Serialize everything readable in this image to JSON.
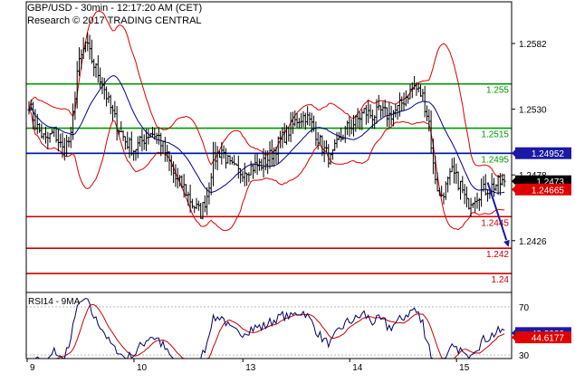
{
  "header": {
    "title": "GBP/USD - 30min - 12:17:20 AM (CET)",
    "source": "Research © 2017 TRADING CENTRAL"
  },
  "chart_data": {
    "type": "candlestick",
    "price_axis": {
      "ylim": [
        1.2385,
        1.2615
      ],
      "ticks": [
        "1.2582",
        "1.2530",
        "1.2478",
        "1.2426"
      ],
      "tick_values": [
        1.2582,
        1.253,
        1.2478,
        1.2426
      ]
    },
    "x_axis": {
      "labels": [
        "9",
        "10",
        "13",
        "14",
        "15"
      ],
      "positions": [
        0,
        51,
        103,
        154,
        205
      ],
      "bars_total": 230
    },
    "levels": [
      {
        "label": "1.255",
        "value": 1.255,
        "color": "#009900",
        "kind": "resistance"
      },
      {
        "label": "1.2515",
        "value": 1.2515,
        "color": "#009900",
        "kind": "resistance"
      },
      {
        "label": "1.2495",
        "value": 1.2495,
        "color": "#009900",
        "kind": "resistance"
      },
      {
        "label": "1.2445",
        "value": 1.2445,
        "color": "#cc0000",
        "kind": "support"
      },
      {
        "label": "1.242",
        "value": 1.242,
        "color": "#cc0000",
        "kind": "support"
      },
      {
        "label": "1.24",
        "value": 1.24,
        "color": "#cc0000",
        "kind": "support"
      }
    ],
    "pivot_line": {
      "value": 1.24952,
      "color": "#0000cc"
    },
    "price_tags": [
      {
        "label": "1.24952",
        "value": 1.24952,
        "bg": "#1a1aa6",
        "fg": "#ffffff"
      },
      {
        "label": "1.2473",
        "value": 1.2473,
        "bg": "#000000",
        "fg": "#ffffff"
      },
      {
        "label": "1.24665",
        "value": 1.24665,
        "bg": "#e00000",
        "fg": "#ffffff"
      }
    ],
    "price_anchors": [
      [
        0,
        1.2535
      ],
      [
        3,
        1.2518
      ],
      [
        8,
        1.2505
      ],
      [
        12,
        1.2512
      ],
      [
        16,
        1.2498
      ],
      [
        20,
        1.2507
      ],
      [
        23,
        1.256
      ],
      [
        27,
        1.2582
      ],
      [
        31,
        1.2565
      ],
      [
        35,
        1.2552
      ],
      [
        38,
        1.2535
      ],
      [
        42,
        1.2518
      ],
      [
        46,
        1.2505
      ],
      [
        50,
        1.2498
      ],
      [
        54,
        1.2505
      ],
      [
        58,
        1.2512
      ],
      [
        62,
        1.2508
      ],
      [
        66,
        1.2492
      ],
      [
        70,
        1.2475
      ],
      [
        74,
        1.2468
      ],
      [
        78,
        1.2455
      ],
      [
        82,
        1.2448
      ],
      [
        85,
        1.2462
      ],
      [
        88,
        1.249
      ],
      [
        92,
        1.2498
      ],
      [
        96,
        1.2485
      ],
      [
        100,
        1.248
      ],
      [
        104,
        1.2483
      ],
      [
        108,
        1.2485
      ],
      [
        112,
        1.2487
      ],
      [
        116,
        1.2495
      ],
      [
        120,
        1.2505
      ],
      [
        124,
        1.2513
      ],
      [
        128,
        1.2522
      ],
      [
        132,
        1.2525
      ],
      [
        136,
        1.2515
      ],
      [
        140,
        1.25
      ],
      [
        144,
        1.249
      ],
      [
        148,
        1.2505
      ],
      [
        152,
        1.2515
      ],
      [
        156,
        1.252
      ],
      [
        160,
        1.2528
      ],
      [
        164,
        1.2525
      ],
      [
        168,
        1.2528
      ],
      [
        172,
        1.2525
      ],
      [
        176,
        1.253
      ],
      [
        180,
        1.254
      ],
      [
        184,
        1.2548
      ],
      [
        188,
        1.254
      ],
      [
        191,
        1.252
      ],
      [
        193,
        1.2485
      ],
      [
        196,
        1.246
      ],
      [
        199,
        1.2468
      ],
      [
        202,
        1.248
      ],
      [
        206,
        1.247
      ],
      [
        209,
        1.2455
      ],
      [
        212,
        1.246
      ],
      [
        216,
        1.2465
      ],
      [
        220,
        1.2468
      ],
      [
        224,
        1.2471
      ],
      [
        227,
        1.2473
      ]
    ],
    "bollinger": {
      "period": 20,
      "multiplier": 2,
      "upper_color": "#dd0000",
      "lower_color": "#dd0000",
      "mid_color": "#000099"
    },
    "forecast_arrow": {
      "from": [
        219,
        1.2472
      ],
      "to": [
        229,
        1.2421
      ],
      "color": "#1a1aa6"
    },
    "rsi": {
      "label": "RSI14 - 9MA",
      "period": 14,
      "ma_period": 9,
      "ylim": [
        27,
        82
      ],
      "ticks": [
        "70",
        "30"
      ],
      "tick_values": [
        70,
        30
      ],
      "value": {
        "label": "48.2222",
        "value": 48.2222,
        "bg": "#1a1aa6",
        "fg": "#ffffff"
      },
      "ma": {
        "label": "44.6177",
        "value": 44.6177,
        "bg": "#e00000",
        "fg": "#ffffff"
      }
    }
  }
}
